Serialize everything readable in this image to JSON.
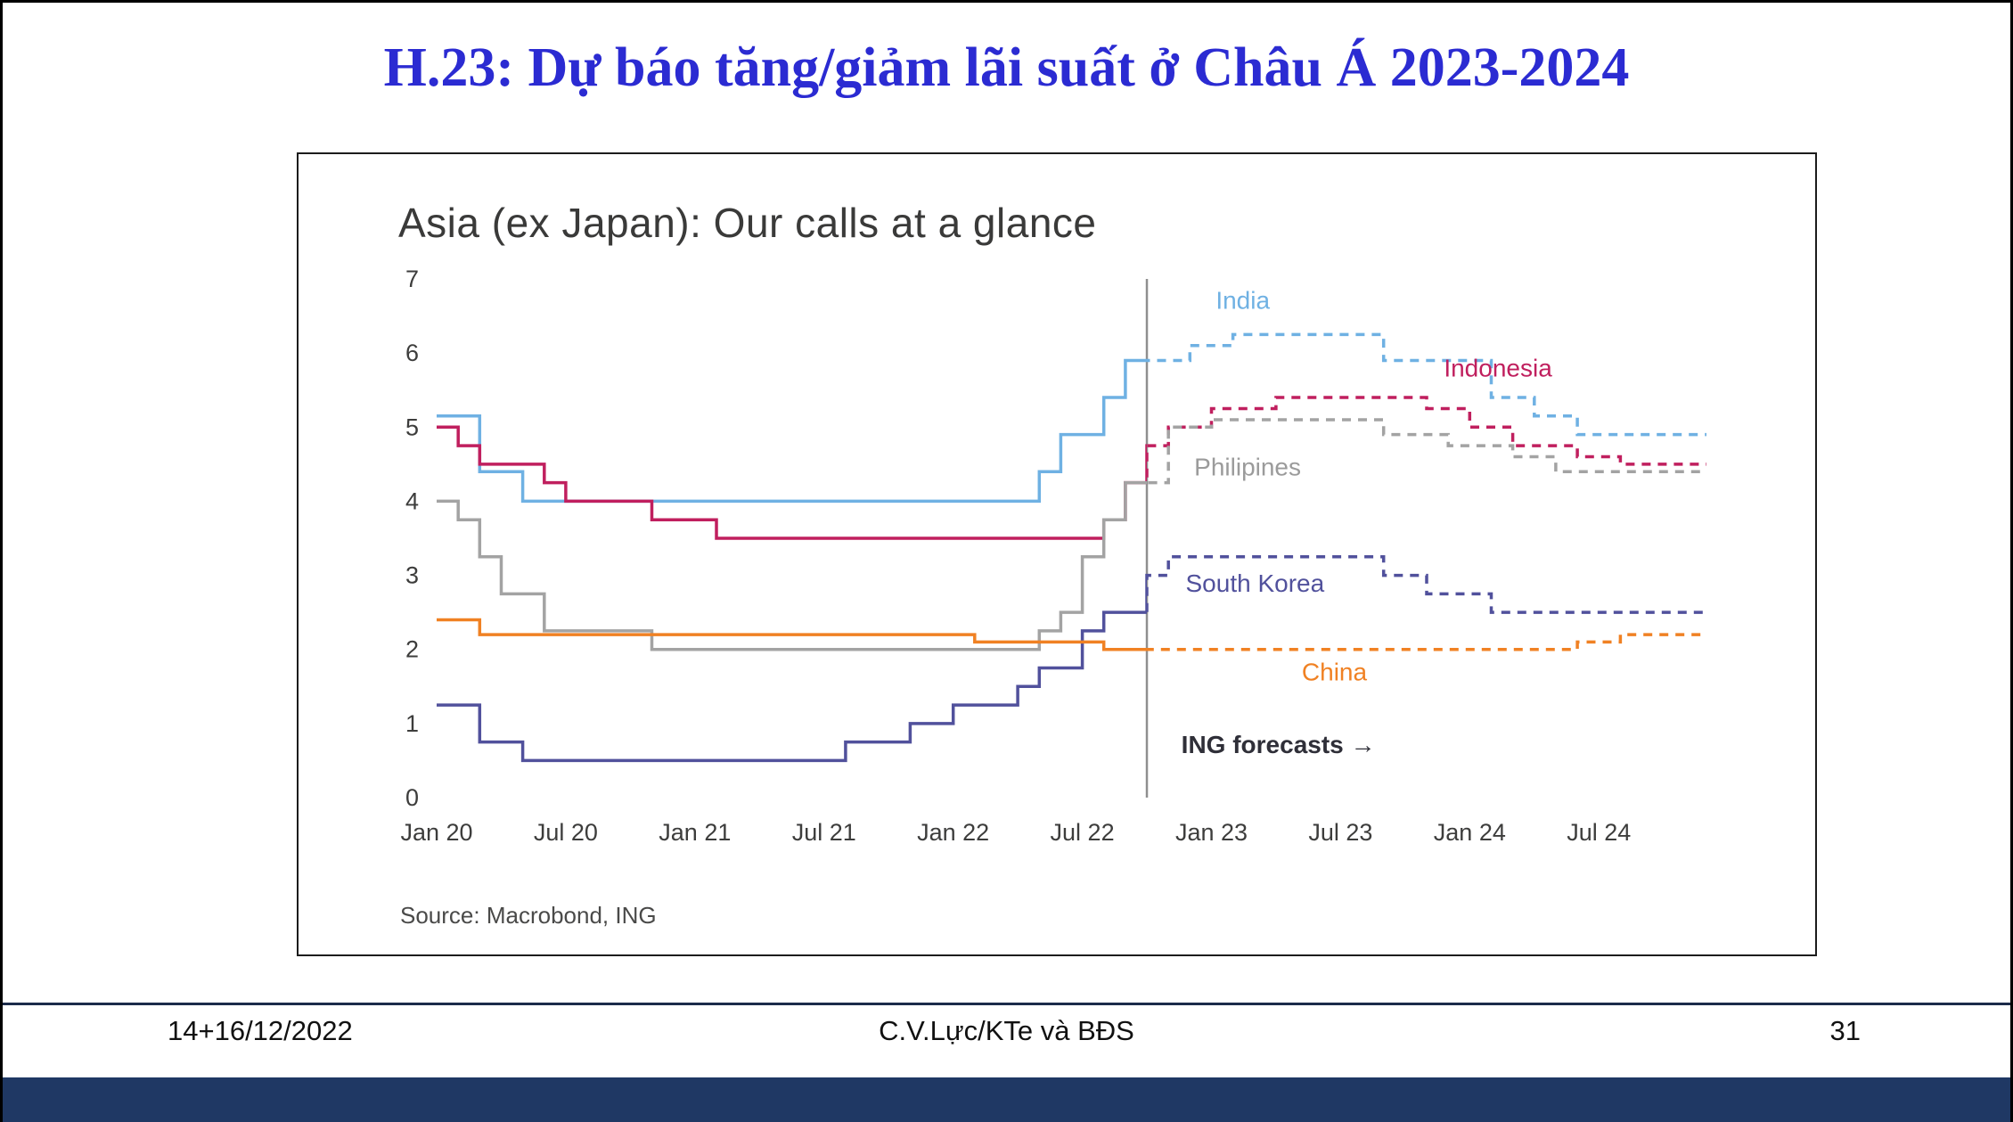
{
  "slide": {
    "title": "H.23: Dự báo tăng/giảm lãi suất ở Châu Á 2023-2024",
    "footer": {
      "date": "14+16/12/2022",
      "center": "C.V.Lực/KTe và BĐS",
      "page": "31"
    }
  },
  "chart": {
    "title": "Asia (ex Japan): Our calls at a glance",
    "source": "Source: Macrobond, ING"
  },
  "chart_data": {
    "type": "line",
    "step": true,
    "title": "Asia (ex Japan): Our calls at a glance",
    "source": "Source: Macrobond, ING",
    "x_unit": "months since Jan 2020",
    "x_range": [
      0,
      59
    ],
    "ylim": [
      0,
      7
    ],
    "grid": false,
    "legend": "inline labels",
    "y_ticks": [
      0,
      1,
      2,
      3,
      4,
      5,
      6,
      7
    ],
    "x_ticks": [
      {
        "month": 0,
        "label": "Jan 20"
      },
      {
        "month": 6,
        "label": "Jul 20"
      },
      {
        "month": 12,
        "label": "Jan 21"
      },
      {
        "month": 18,
        "label": "Jul 21"
      },
      {
        "month": 24,
        "label": "Jan 22"
      },
      {
        "month": 30,
        "label": "Jul 22"
      },
      {
        "month": 36,
        "label": "Jan 23"
      },
      {
        "month": 42,
        "label": "Jul 23"
      },
      {
        "month": 48,
        "label": "Jan 24"
      },
      {
        "month": 54,
        "label": "Jul 24"
      }
    ],
    "forecast_start_month": 33,
    "forecast_divider_color": "#8f8f8f",
    "series": [
      {
        "id": "india",
        "name": "India",
        "color": "#6fb1e3",
        "points": [
          [
            0,
            5.15
          ],
          [
            2,
            4.4
          ],
          [
            4,
            4.0
          ],
          [
            28,
            4.4
          ],
          [
            29,
            4.9
          ],
          [
            31,
            5.4
          ],
          [
            32,
            5.9
          ],
          [
            35,
            6.1
          ],
          [
            37,
            6.25
          ],
          [
            43,
            6.25
          ],
          [
            44,
            5.9
          ],
          [
            49,
            5.4
          ],
          [
            51,
            5.15
          ],
          [
            53,
            4.9
          ],
          [
            59,
            4.9
          ]
        ]
      },
      {
        "id": "indonesia",
        "name": "Indonesia",
        "color": "#c01f5e",
        "points": [
          [
            0,
            5.0
          ],
          [
            1,
            4.75
          ],
          [
            2,
            4.5
          ],
          [
            5,
            4.25
          ],
          [
            6,
            4.0
          ],
          [
            10,
            3.75
          ],
          [
            13,
            3.5
          ],
          [
            31,
            3.75
          ],
          [
            32,
            4.25
          ],
          [
            33,
            4.75
          ],
          [
            34,
            5.0
          ],
          [
            36,
            5.25
          ],
          [
            39,
            5.4
          ],
          [
            45,
            5.4
          ],
          [
            46,
            5.25
          ],
          [
            48,
            5.0
          ],
          [
            50,
            4.75
          ],
          [
            53,
            4.6
          ],
          [
            55,
            4.5
          ],
          [
            59,
            4.5
          ]
        ]
      },
      {
        "id": "philippines",
        "name": "Philipines",
        "color": "#a3a3a3",
        "points": [
          [
            0,
            4.0
          ],
          [
            1,
            3.75
          ],
          [
            2,
            3.25
          ],
          [
            3,
            2.75
          ],
          [
            5,
            2.25
          ],
          [
            10,
            2.0
          ],
          [
            28,
            2.25
          ],
          [
            29,
            2.5
          ],
          [
            30,
            3.25
          ],
          [
            31,
            3.75
          ],
          [
            32,
            4.25
          ],
          [
            34,
            5.0
          ],
          [
            36,
            5.1
          ],
          [
            43,
            5.1
          ],
          [
            44,
            4.9
          ],
          [
            47,
            4.75
          ],
          [
            50,
            4.6
          ],
          [
            52,
            4.4
          ],
          [
            59,
            4.4
          ]
        ]
      },
      {
        "id": "south-korea",
        "name": "South Korea",
        "color": "#51519c",
        "points": [
          [
            0,
            1.25
          ],
          [
            2,
            0.75
          ],
          [
            4,
            0.5
          ],
          [
            19,
            0.75
          ],
          [
            22,
            1.0
          ],
          [
            24,
            1.25
          ],
          [
            27,
            1.5
          ],
          [
            28,
            1.75
          ],
          [
            30,
            2.25
          ],
          [
            31,
            2.5
          ],
          [
            33,
            3.0
          ],
          [
            34,
            3.25
          ],
          [
            43,
            3.25
          ],
          [
            44,
            3.0
          ],
          [
            46,
            2.75
          ],
          [
            49,
            2.5
          ],
          [
            59,
            2.5
          ]
        ]
      },
      {
        "id": "china",
        "name": "China",
        "color": "#f08123",
        "points": [
          [
            0,
            2.4
          ],
          [
            2,
            2.2
          ],
          [
            25,
            2.1
          ],
          [
            31,
            2.0
          ],
          [
            53,
            2.1
          ],
          [
            55,
            2.2
          ],
          [
            59,
            2.2
          ]
        ]
      }
    ],
    "labels": [
      {
        "id": "india",
        "text": "India",
        "month": 36.2,
        "value": 6.6,
        "color": "#6fb1e3",
        "bold": false
      },
      {
        "id": "indonesia",
        "text": "Indonesia",
        "month": 46.8,
        "value": 5.68,
        "color": "#c01f5e",
        "bold": false
      },
      {
        "id": "philippines",
        "text": "Philipines",
        "month": 35.2,
        "value": 4.35,
        "color": "#9b9b9b",
        "bold": false
      },
      {
        "id": "south-korea",
        "text": "South Korea",
        "month": 34.8,
        "value": 2.78,
        "color": "#51519c",
        "bold": false
      },
      {
        "id": "china",
        "text": "China",
        "month": 40.2,
        "value": 1.58,
        "color": "#f08123",
        "bold": false
      },
      {
        "id": "forecast-note",
        "text": "ING forecasts →",
        "month": 34.6,
        "value": 0.6,
        "color": "#2f2f38",
        "bold": true
      }
    ]
  }
}
